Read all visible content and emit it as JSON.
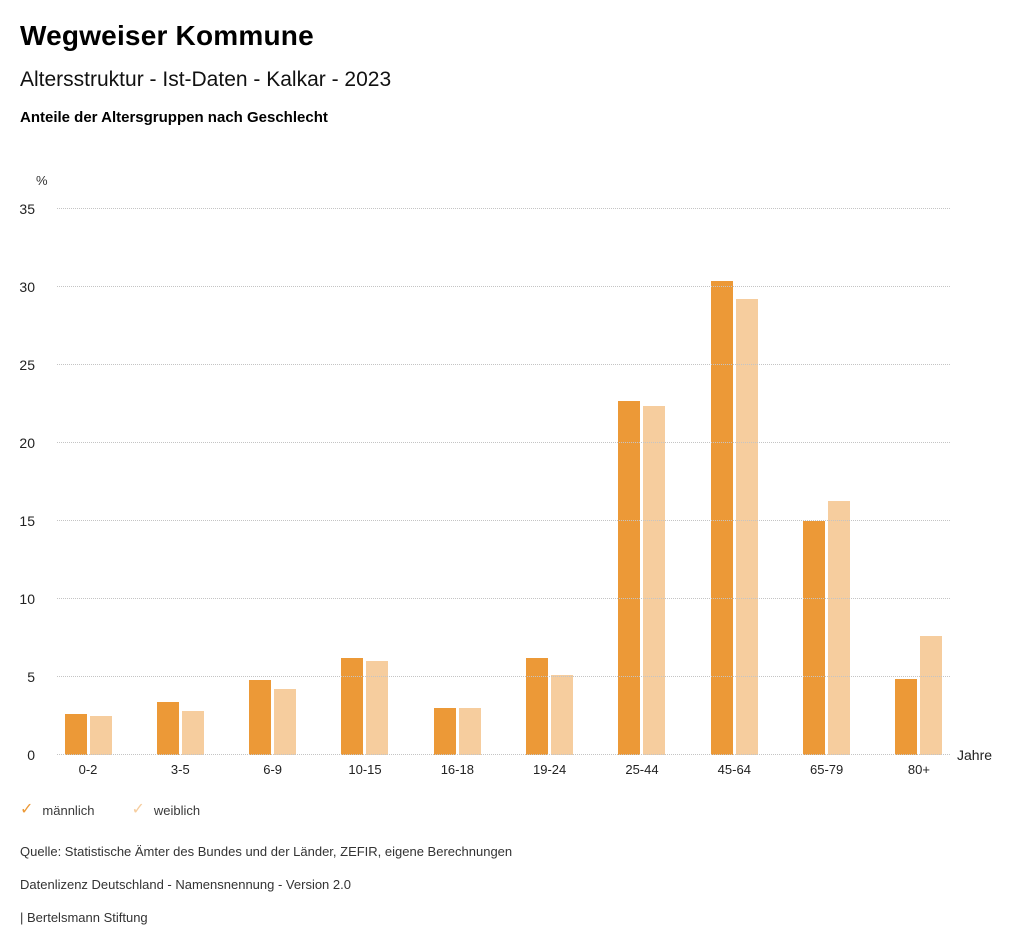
{
  "header": {
    "title": "Wegweiser Kommune",
    "subtitle": "Altersstruktur - Ist-Daten - Kalkar - 2023",
    "description": "Anteile der Altersgruppen nach Geschlecht"
  },
  "chart_data": {
    "type": "bar",
    "title": "Anteile der Altersgruppen nach Geschlecht",
    "ylabel": "%",
    "xlabel": "Jahre",
    "ylim": [
      0,
      35
    ],
    "ytick_step": 5,
    "grid": "horizontal-dotted",
    "legend_position": "bottom-left",
    "categories": [
      "0-2",
      "3-5",
      "6-9",
      "10-15",
      "16-18",
      "19-24",
      "25-44",
      "45-64",
      "65-79",
      "80+"
    ],
    "series": [
      {
        "name": "männlich",
        "color": "#EC9937",
        "values": [
          2.6,
          3.4,
          4.8,
          6.2,
          3.0,
          6.2,
          22.7,
          30.4,
          15.0,
          4.9
        ]
      },
      {
        "name": "weiblich",
        "color": "#F6CD9E",
        "values": [
          2.5,
          2.8,
          4.2,
          6.0,
          3.0,
          5.1,
          22.4,
          29.2,
          16.3,
          7.6
        ]
      }
    ]
  },
  "legend": {
    "check_icon": "✓"
  },
  "footer": {
    "lines": [
      "Quelle: Statistische Ämter des Bundes und der Länder, ZEFIR, eigene Berechnungen",
      "Datenlizenz Deutschland - Namensnennung - Version 2.0",
      "| Bertelsmann Stiftung"
    ]
  }
}
